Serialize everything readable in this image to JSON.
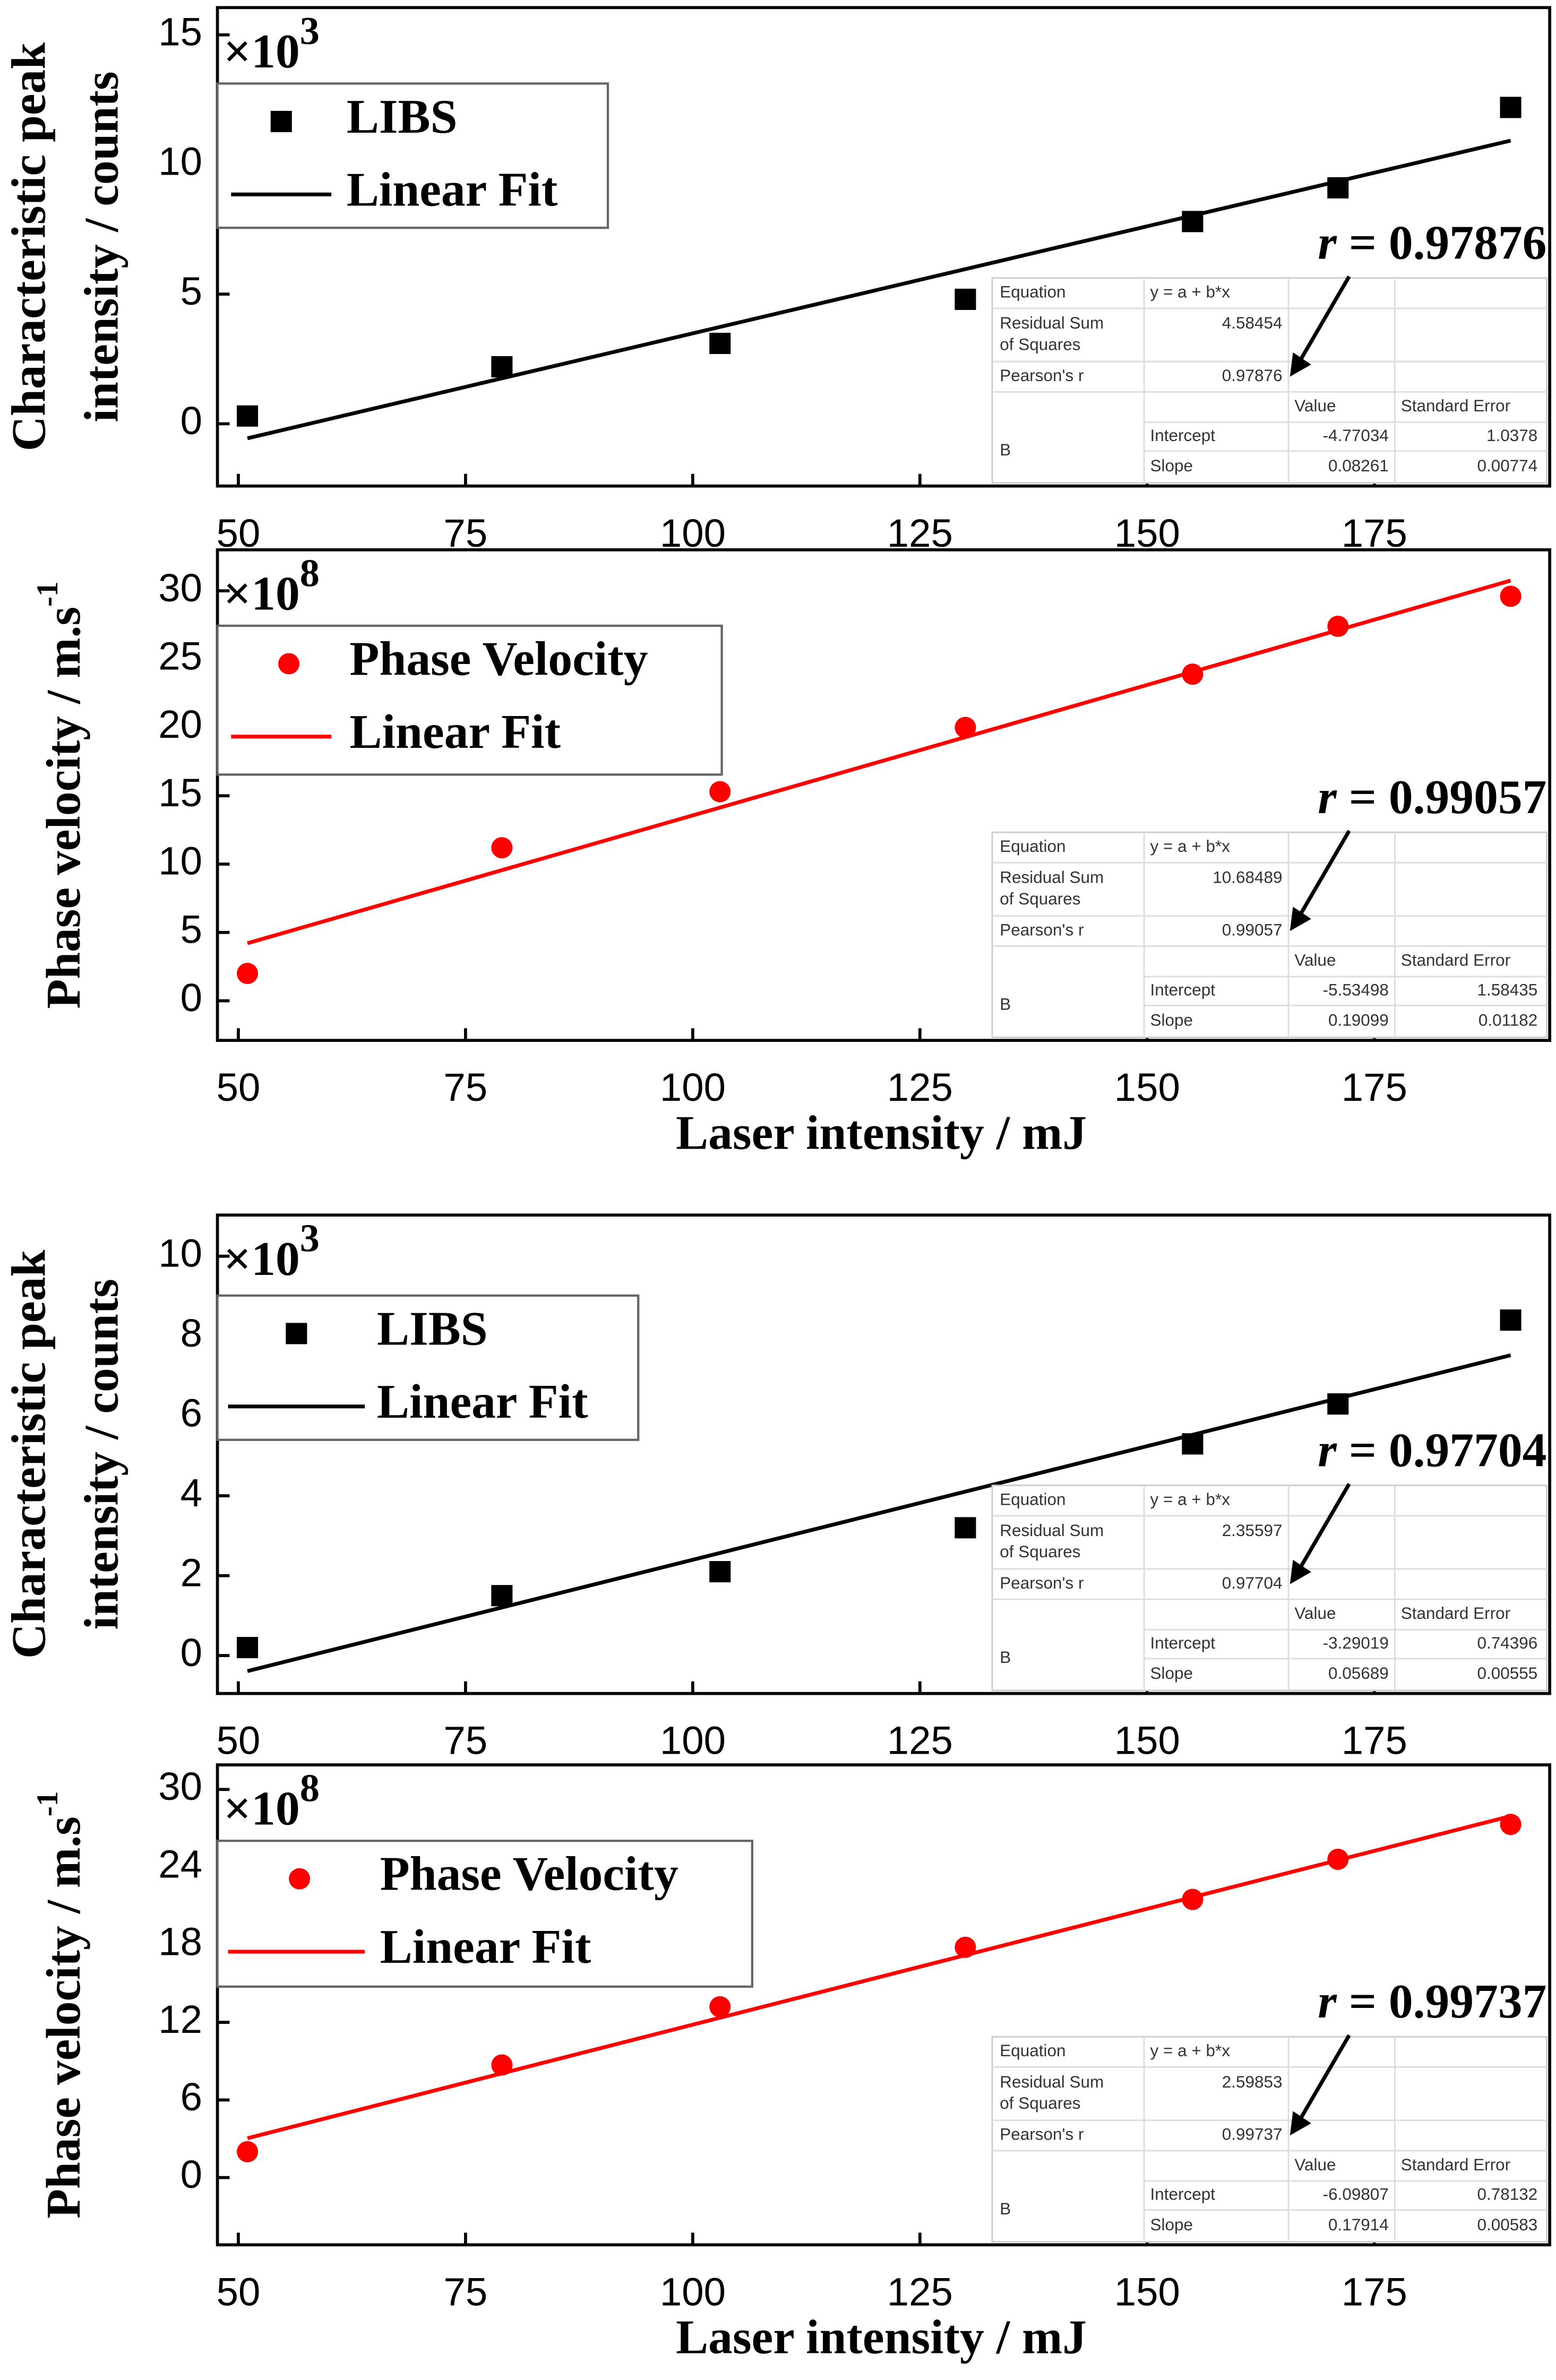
{
  "chart_data": [
    {
      "type": "scatter",
      "ylabel": [
        "Characteristic peak",
        "intensity / counts"
      ],
      "multiplier": "×10",
      "multiplier_exp": "3",
      "xlim": [
        47.7,
        194.3
      ],
      "xticks": [
        50,
        75,
        100,
        125,
        150,
        175
      ],
      "ylim": [
        -2.4,
        16.05
      ],
      "yticks": [
        0,
        5,
        10,
        15
      ],
      "series": [
        {
          "name": "LIBS",
          "color": "#000000",
          "marker": "square",
          "x": [
            51,
            79,
            103,
            130,
            155,
            171,
            190
          ],
          "values": [
            0.3,
            2.2,
            3.1,
            4.8,
            7.8,
            9.1,
            12.2
          ]
        },
        {
          "name": "Linear Fit",
          "color": "#000000",
          "marker": "line",
          "x": [
            51,
            190
          ],
          "values": [
            -0.56,
            10.92
          ]
        }
      ],
      "annotation": {
        "symbol": "r",
        "text": "= 0.97876"
      },
      "stats": {
        "equation_label": "Equation",
        "equation": "y = a + b*x",
        "rss_label": [
          "Residual Sum",
          "of Squares"
        ],
        "rss": "4.58454",
        "pearson_label": "Pearson's r",
        "pearson": "0.97876",
        "value_header": "Value",
        "error_header": "Standard Error",
        "param": "B",
        "rows": [
          [
            "Intercept",
            "-4.77034",
            "1.0378"
          ],
          [
            "Slope",
            "0.08261",
            "0.00774"
          ]
        ]
      }
    },
    {
      "type": "scatter",
      "ylabel": "Phase velocity / m.s",
      "ylabel_sup": "-1",
      "xlabel": "Laser intensity / mJ",
      "multiplier": "×10",
      "multiplier_exp": "8",
      "xlim": [
        47.7,
        194.3
      ],
      "xticks": [
        50,
        75,
        100,
        125,
        150,
        175
      ],
      "ylim": [
        -2.9,
        33
      ],
      "yticks": [
        0,
        5,
        10,
        15,
        20,
        25,
        30
      ],
      "series": [
        {
          "name": "Phase Velocity",
          "color": "#ff0000",
          "marker": "circle",
          "x": [
            51,
            79,
            103,
            130,
            155,
            171,
            190
          ],
          "values": [
            2.0,
            11.2,
            15.3,
            20.0,
            23.9,
            27.4,
            29.6
          ]
        },
        {
          "name": "Linear Fit",
          "color": "#ff0000",
          "marker": "line",
          "x": [
            51,
            190
          ],
          "values": [
            4.21,
            30.75
          ]
        }
      ],
      "annotation": {
        "symbol": "r",
        "text": "= 0.99057"
      },
      "stats": {
        "equation_label": "Equation",
        "equation": "y = a + b*x",
        "rss_label": [
          "Residual Sum",
          "of Squares"
        ],
        "rss": "10.68489",
        "pearson_label": "Pearson's r",
        "pearson": "0.99057",
        "value_header": "Value",
        "error_header": "Standard Error",
        "param": "B",
        "rows": [
          [
            "Intercept",
            "-5.53498",
            "1.58435"
          ],
          [
            "Slope",
            "0.19099",
            "0.01182"
          ]
        ]
      }
    },
    {
      "type": "scatter",
      "ylabel": [
        "Characteristic peak",
        "intensity / counts"
      ],
      "multiplier": "×10",
      "multiplier_exp": "3",
      "xlim": [
        47.7,
        194.3
      ],
      "xticks": [
        50,
        75,
        100,
        125,
        150,
        175
      ],
      "ylim": [
        -0.95,
        11.03
      ],
      "yticks": [
        0,
        2,
        4,
        6,
        8,
        10
      ],
      "series": [
        {
          "name": "LIBS",
          "color": "#000000",
          "marker": "square",
          "x": [
            51,
            79,
            103,
            130,
            155,
            171,
            190
          ],
          "values": [
            0.2,
            1.5,
            2.1,
            3.2,
            5.3,
            6.3,
            8.4
          ]
        },
        {
          "name": "Linear Fit",
          "color": "#000000",
          "marker": "line",
          "x": [
            51,
            190
          ],
          "values": [
            -0.39,
            7.52
          ]
        }
      ],
      "annotation": {
        "symbol": "r",
        "text": "= 0.97704"
      },
      "stats": {
        "equation_label": "Equation",
        "equation": "y = a + b*x",
        "rss_label": [
          "Residual Sum",
          "of Squares"
        ],
        "rss": "2.35597",
        "pearson_label": "Pearson's r",
        "pearson": "0.97704",
        "value_header": "Value",
        "error_header": "Standard Error",
        "param": "B",
        "rows": [
          [
            "Intercept",
            "-3.29019",
            "0.74396"
          ],
          [
            "Slope",
            "0.05689",
            "0.00555"
          ]
        ]
      }
    },
    {
      "type": "scatter",
      "ylabel": "Phase velocity / m.s",
      "ylabel_sup": "-1",
      "xlabel": "Laser intensity / mJ",
      "multiplier": "×10",
      "multiplier_exp": "8",
      "xlim": [
        47.7,
        194.3
      ],
      "xticks": [
        50,
        75,
        100,
        125,
        150,
        175
      ],
      "ylim": [
        -5.2,
        31.9
      ],
      "yticks": [
        0,
        6,
        12,
        18,
        24,
        30
      ],
      "series": [
        {
          "name": "Phase Velocity",
          "color": "#ff0000",
          "marker": "circle",
          "x": [
            51,
            79,
            103,
            130,
            155,
            171,
            190
          ],
          "values": [
            2.0,
            8.7,
            13.2,
            17.8,
            21.5,
            24.6,
            27.3
          ]
        },
        {
          "name": "Linear Fit",
          "color": "#ff0000",
          "marker": "line",
          "x": [
            51,
            190
          ],
          "values": [
            3.04,
            27.94
          ]
        }
      ],
      "annotation": {
        "symbol": "r",
        "text": "= 0.99737"
      },
      "stats": {
        "equation_label": "Equation",
        "equation": "y = a + b*x",
        "rss_label": [
          "Residual Sum",
          "of Squares"
        ],
        "rss": "2.59853",
        "pearson_label": "Pearson's r",
        "pearson": "0.99737",
        "value_header": "Value",
        "error_header": "Standard Error",
        "param": "B",
        "rows": [
          [
            "Intercept",
            "-6.09807",
            "0.78132"
          ],
          [
            "Slope",
            "0.17914",
            "0.00583"
          ]
        ]
      }
    }
  ]
}
